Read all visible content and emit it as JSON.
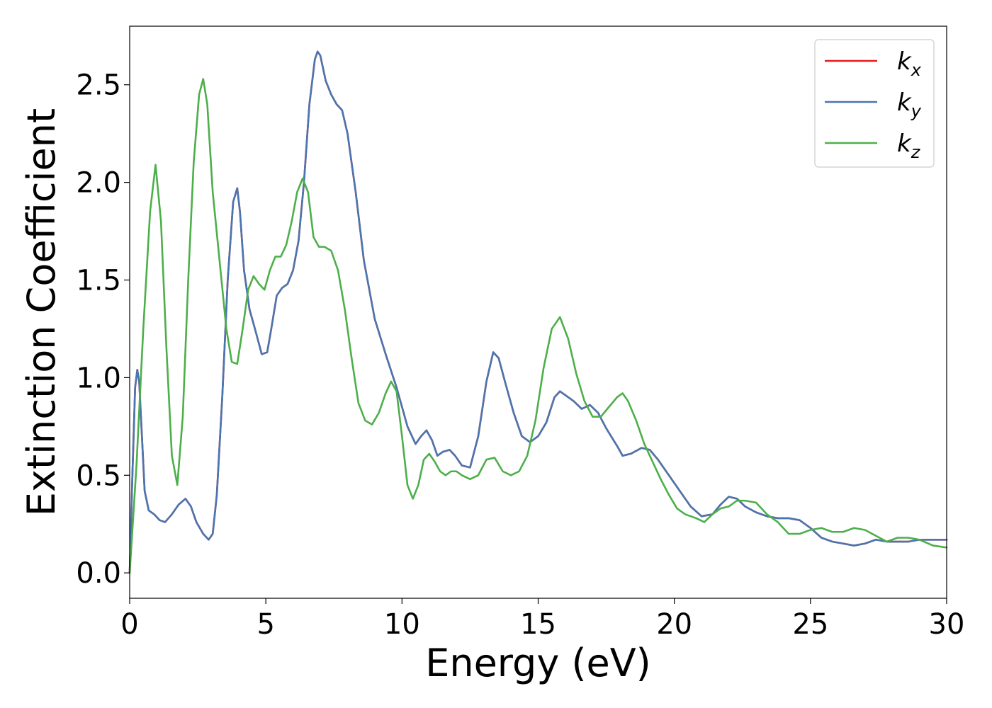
{
  "chart_data": {
    "type": "line",
    "xlabel": "Energy (eV)",
    "ylabel": "Extinction Coefficient",
    "xlim": [
      0,
      30
    ],
    "ylim": [
      -0.13,
      2.8
    ],
    "xticks": [
      0,
      5,
      10,
      15,
      20,
      25,
      30
    ],
    "yticks": [
      0.0,
      0.5,
      1.0,
      1.5,
      2.0,
      2.5
    ],
    "grid": false,
    "legend_position": "top-right",
    "series": [
      {
        "name": "k_x",
        "label_base": "k",
        "label_sub": "x",
        "color": "#e41a1c",
        "x": [
          0.0,
          0.1,
          0.2,
          0.28,
          0.35,
          0.45,
          0.55,
          0.7,
          0.9,
          1.1,
          1.3,
          1.55,
          1.8,
          2.05,
          2.25,
          2.45,
          2.7,
          2.9,
          3.05,
          3.2,
          3.4,
          3.6,
          3.8,
          3.95,
          4.05,
          4.2,
          4.4,
          4.6,
          4.85,
          5.05,
          5.2,
          5.4,
          5.6,
          5.8,
          6.0,
          6.2,
          6.4,
          6.6,
          6.8,
          6.9,
          7.0,
          7.2,
          7.4,
          7.6,
          7.8,
          8.0,
          8.3,
          8.6,
          9.0,
          9.4,
          9.8,
          10.2,
          10.5,
          10.7,
          10.9,
          11.1,
          11.3,
          11.5,
          11.75,
          11.95,
          12.2,
          12.5,
          12.8,
          13.1,
          13.35,
          13.55,
          13.8,
          14.1,
          14.4,
          14.7,
          15.0,
          15.3,
          15.6,
          15.8,
          16.0,
          16.3,
          16.6,
          16.9,
          17.2,
          17.5,
          17.9,
          18.1,
          18.4,
          18.8,
          19.1,
          19.4,
          19.8,
          20.2,
          20.6,
          21.0,
          21.4,
          21.7,
          22.0,
          22.3,
          22.6,
          23.0,
          23.4,
          23.8,
          24.2,
          24.6,
          25.0,
          25.4,
          25.8,
          26.2,
          26.6,
          27.0,
          27.4,
          27.8,
          28.2,
          28.6,
          29.0,
          29.5,
          30.0
        ],
        "values": [
          0.0,
          0.5,
          0.95,
          1.04,
          0.98,
          0.7,
          0.42,
          0.32,
          0.3,
          0.27,
          0.26,
          0.3,
          0.35,
          0.38,
          0.34,
          0.26,
          0.2,
          0.17,
          0.2,
          0.4,
          0.9,
          1.5,
          1.9,
          1.97,
          1.85,
          1.55,
          1.35,
          1.25,
          1.12,
          1.13,
          1.25,
          1.42,
          1.46,
          1.48,
          1.55,
          1.7,
          2.0,
          2.4,
          2.63,
          2.67,
          2.65,
          2.52,
          2.45,
          2.4,
          2.37,
          2.25,
          1.95,
          1.6,
          1.3,
          1.12,
          0.95,
          0.75,
          0.66,
          0.7,
          0.73,
          0.68,
          0.6,
          0.62,
          0.63,
          0.6,
          0.55,
          0.54,
          0.7,
          0.98,
          1.13,
          1.1,
          0.97,
          0.82,
          0.7,
          0.67,
          0.7,
          0.77,
          0.9,
          0.93,
          0.91,
          0.88,
          0.84,
          0.86,
          0.82,
          0.74,
          0.65,
          0.6,
          0.61,
          0.64,
          0.63,
          0.58,
          0.5,
          0.42,
          0.34,
          0.29,
          0.3,
          0.35,
          0.39,
          0.38,
          0.34,
          0.31,
          0.29,
          0.28,
          0.28,
          0.27,
          0.23,
          0.18,
          0.16,
          0.15,
          0.14,
          0.15,
          0.17,
          0.16,
          0.16,
          0.16,
          0.17,
          0.17,
          0.17
        ]
      },
      {
        "name": "k_y",
        "label_base": "k",
        "label_sub": "y",
        "color": "#4a76b0",
        "x": [
          0.0,
          0.1,
          0.2,
          0.28,
          0.35,
          0.45,
          0.55,
          0.7,
          0.9,
          1.1,
          1.3,
          1.55,
          1.8,
          2.05,
          2.25,
          2.45,
          2.7,
          2.9,
          3.05,
          3.2,
          3.4,
          3.6,
          3.8,
          3.95,
          4.05,
          4.2,
          4.4,
          4.6,
          4.85,
          5.05,
          5.2,
          5.4,
          5.6,
          5.8,
          6.0,
          6.2,
          6.4,
          6.6,
          6.8,
          6.9,
          7.0,
          7.2,
          7.4,
          7.6,
          7.8,
          8.0,
          8.3,
          8.6,
          9.0,
          9.4,
          9.8,
          10.2,
          10.5,
          10.7,
          10.9,
          11.1,
          11.3,
          11.5,
          11.75,
          11.95,
          12.2,
          12.5,
          12.8,
          13.1,
          13.35,
          13.55,
          13.8,
          14.1,
          14.4,
          14.7,
          15.0,
          15.3,
          15.6,
          15.8,
          16.0,
          16.3,
          16.6,
          16.9,
          17.2,
          17.5,
          17.9,
          18.1,
          18.4,
          18.8,
          19.1,
          19.4,
          19.8,
          20.2,
          20.6,
          21.0,
          21.4,
          21.7,
          22.0,
          22.3,
          22.6,
          23.0,
          23.4,
          23.8,
          24.2,
          24.6,
          25.0,
          25.4,
          25.8,
          26.2,
          26.6,
          27.0,
          27.4,
          27.8,
          28.2,
          28.6,
          29.0,
          29.5,
          30.0
        ],
        "values": [
          0.0,
          0.5,
          0.95,
          1.04,
          0.98,
          0.7,
          0.42,
          0.32,
          0.3,
          0.27,
          0.26,
          0.3,
          0.35,
          0.38,
          0.34,
          0.26,
          0.2,
          0.17,
          0.2,
          0.4,
          0.9,
          1.5,
          1.9,
          1.97,
          1.85,
          1.55,
          1.35,
          1.25,
          1.12,
          1.13,
          1.25,
          1.42,
          1.46,
          1.48,
          1.55,
          1.7,
          2.0,
          2.4,
          2.63,
          2.67,
          2.65,
          2.52,
          2.45,
          2.4,
          2.37,
          2.25,
          1.95,
          1.6,
          1.3,
          1.12,
          0.95,
          0.75,
          0.66,
          0.7,
          0.73,
          0.68,
          0.6,
          0.62,
          0.63,
          0.6,
          0.55,
          0.54,
          0.7,
          0.98,
          1.13,
          1.1,
          0.97,
          0.82,
          0.7,
          0.67,
          0.7,
          0.77,
          0.9,
          0.93,
          0.91,
          0.88,
          0.84,
          0.86,
          0.82,
          0.74,
          0.65,
          0.6,
          0.61,
          0.64,
          0.63,
          0.58,
          0.5,
          0.42,
          0.34,
          0.29,
          0.3,
          0.35,
          0.39,
          0.38,
          0.34,
          0.31,
          0.29,
          0.28,
          0.28,
          0.27,
          0.23,
          0.18,
          0.16,
          0.15,
          0.14,
          0.15,
          0.17,
          0.16,
          0.16,
          0.16,
          0.17,
          0.17,
          0.17
        ]
      },
      {
        "name": "k_z",
        "label_base": "k",
        "label_sub": "z",
        "color": "#4daf4a",
        "x": [
          0.0,
          0.25,
          0.5,
          0.75,
          0.95,
          1.15,
          1.35,
          1.55,
          1.75,
          1.95,
          2.15,
          2.35,
          2.55,
          2.7,
          2.85,
          3.05,
          3.3,
          3.55,
          3.75,
          3.95,
          4.15,
          4.35,
          4.55,
          4.75,
          4.95,
          5.15,
          5.35,
          5.55,
          5.75,
          5.95,
          6.15,
          6.35,
          6.55,
          6.75,
          6.95,
          7.15,
          7.4,
          7.65,
          7.9,
          8.15,
          8.4,
          8.65,
          8.9,
          9.15,
          9.4,
          9.6,
          9.8,
          10.0,
          10.2,
          10.4,
          10.6,
          10.8,
          11.0,
          11.2,
          11.4,
          11.6,
          11.8,
          12.0,
          12.2,
          12.5,
          12.8,
          13.1,
          13.4,
          13.7,
          14.0,
          14.3,
          14.6,
          14.9,
          15.2,
          15.5,
          15.8,
          16.1,
          16.4,
          16.7,
          17.0,
          17.3,
          17.6,
          17.9,
          18.1,
          18.3,
          18.6,
          18.9,
          19.2,
          19.5,
          19.8,
          20.1,
          20.4,
          20.8,
          21.1,
          21.4,
          21.7,
          22.0,
          22.3,
          22.6,
          23.0,
          23.4,
          23.8,
          24.2,
          24.6,
          25.0,
          25.4,
          25.8,
          26.2,
          26.6,
          27.0,
          27.4,
          27.8,
          28.2,
          28.6,
          29.0,
          29.5,
          30.0
        ],
        "values": [
          0.0,
          0.55,
          1.25,
          1.85,
          2.09,
          1.8,
          1.15,
          0.6,
          0.45,
          0.8,
          1.5,
          2.1,
          2.45,
          2.53,
          2.4,
          1.95,
          1.6,
          1.25,
          1.08,
          1.07,
          1.25,
          1.45,
          1.52,
          1.48,
          1.45,
          1.55,
          1.62,
          1.62,
          1.68,
          1.8,
          1.95,
          2.02,
          1.95,
          1.72,
          1.67,
          1.67,
          1.65,
          1.55,
          1.35,
          1.1,
          0.87,
          0.78,
          0.76,
          0.82,
          0.92,
          0.98,
          0.93,
          0.7,
          0.45,
          0.38,
          0.45,
          0.58,
          0.61,
          0.57,
          0.52,
          0.5,
          0.52,
          0.52,
          0.5,
          0.48,
          0.5,
          0.58,
          0.59,
          0.52,
          0.5,
          0.52,
          0.6,
          0.78,
          1.05,
          1.25,
          1.31,
          1.2,
          1.02,
          0.88,
          0.8,
          0.8,
          0.85,
          0.9,
          0.92,
          0.88,
          0.78,
          0.66,
          0.57,
          0.48,
          0.4,
          0.33,
          0.3,
          0.28,
          0.26,
          0.3,
          0.33,
          0.34,
          0.37,
          0.37,
          0.36,
          0.3,
          0.26,
          0.2,
          0.2,
          0.22,
          0.23,
          0.21,
          0.21,
          0.23,
          0.22,
          0.19,
          0.16,
          0.18,
          0.18,
          0.17,
          0.14,
          0.13
        ]
      }
    ]
  }
}
